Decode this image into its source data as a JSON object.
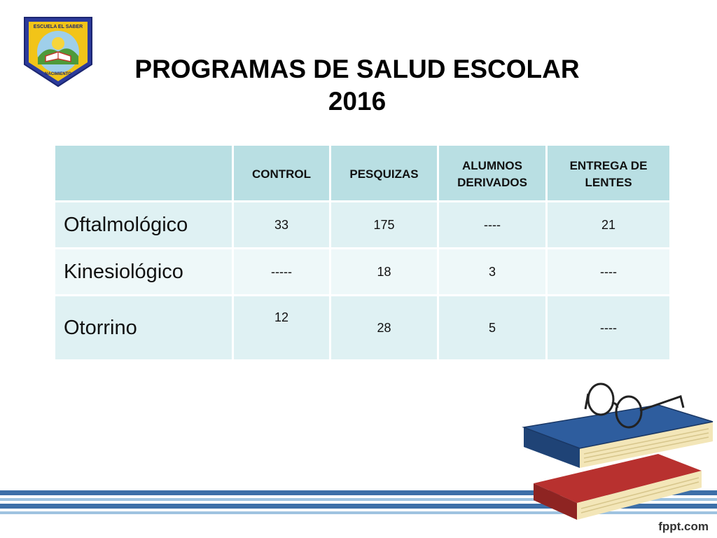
{
  "logo": {
    "top_text": "ESCUELA EL SABER",
    "bottom_text": "NACIMIENTO",
    "colors": {
      "border": "#2c3b9c",
      "gold": "#f2c418",
      "sky": "#9fcfea",
      "grass": "#4e9a3a"
    }
  },
  "title": {
    "line1": "PROGRAMAS DE SALUD ESCOLAR",
    "line2": "2016"
  },
  "table": {
    "columns": [
      "",
      "CONTROL",
      "PESQUIZAS",
      "ALUMNOS DERIVADOS",
      "ENTREGA DE LENTES"
    ],
    "rows": [
      [
        "Oftalmológico",
        "33",
        "175",
        "----",
        "21"
      ],
      [
        "Kinesiológico",
        "-----",
        "18",
        "3",
        "----"
      ],
      [
        "Otorrino",
        "12",
        "28",
        "5",
        "----"
      ]
    ],
    "colors": {
      "header": "#b9dfe3",
      "odd": "#dff1f3",
      "even": "#eef8f9"
    }
  },
  "decor": {
    "icons": [
      "books-icon",
      "glasses-icon"
    ],
    "stripe_colors": [
      "#3d6fa8",
      "#9fc3e0"
    ]
  },
  "brand": "fppt.com"
}
